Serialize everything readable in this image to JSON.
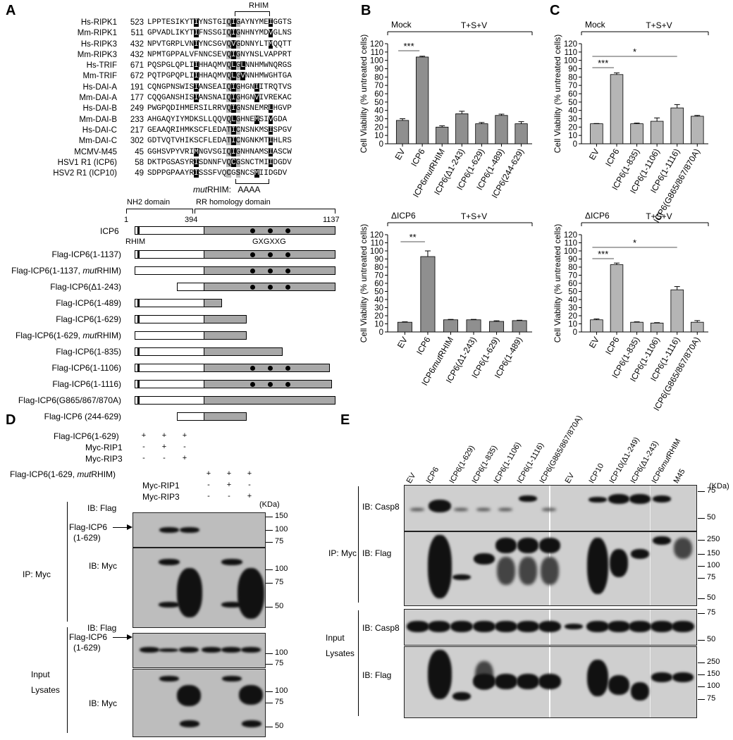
{
  "panels": {
    "A": "A",
    "B": "B",
    "C": "C",
    "D": "D",
    "E": "E"
  },
  "panelA": {
    "rhim_label": "RHIM",
    "mutrhim_label_italic": "mut",
    "mutrhim_label_rest": "RHIM:",
    "mutrhim_seq": "AAAA",
    "alignment": [
      {
        "name": "Hs-RIPK1",
        "start": "523",
        "seq": "LPPTESIKYTIYNSTGIQIGAYNYMEIGGTS"
      },
      {
        "name": "Mm-RIPK1",
        "start": "511",
        "seq": "GPVADLIKYTIFNSSGIQIGNHNYMDVGLNS"
      },
      {
        "name": "Hs-RIPK3",
        "start": "432",
        "seq": "NPVTGRPLVNIYNCSGVQVGDNNYLTMQQTT"
      },
      {
        "name": "Mm-RIPK3",
        "start": "432",
        "seq": "NPMTGPPALVFNNCSEVQIGNYNSLVAPPRT"
      },
      {
        "name": "Hs-TRIF",
        "start": "671",
        "seq": "PQSPGLQPLIIHHAQMVQLGLNNHMWNQRGS"
      },
      {
        "name": "Mm-TRIF",
        "start": "672",
        "seq": "PQTPGPQPLIIHHAQMVQLGVNNHMWGHTGA"
      },
      {
        "name": "Hs-DAI-A",
        "start": "191",
        "seq": "CQNGPNSWISIANSEAIQIGHGNIITRQTVS"
      },
      {
        "name": "Mm-DAI-A",
        "start": "177",
        "seq": "CQQGANSHISIANSNAIQIGHGNVIVREKAC"
      },
      {
        "name": "Hs-DAI-B",
        "start": "249",
        "seq": "PWGPQDIHMERSILRRVQIGNSNEMRLHGVP"
      },
      {
        "name": "Mm-DAI-B",
        "start": "233",
        "seq": "AHGAQYIYMDKSLLQQVQLGHNEMSIVGDA"
      },
      {
        "name": "Hs-DAI-C",
        "start": "217",
        "seq": "GEAAQRIHMKSCFLEDATICNSNKMSISPGV"
      },
      {
        "name": "Mm-DAI-C",
        "start": "302",
        "seq": "GDTVQTVHIKSCFLEDATICNGNKMTIHLRS"
      },
      {
        "name": "MCMV-M45",
        "start": "45",
        "seq": "GGHSVPYVRIMNGVSGIQIGNHNAMSIASCW"
      },
      {
        "name": "HSV1 R1 (ICP6)",
        "start": "58",
        "seq": "DKTPGSASYRISDNNFVQCGSNCTMIIDGDV"
      },
      {
        "name": "HSV2 R1 (ICP10)",
        "start": "49",
        "seq": "SDPPGPAAYRISSSFVQCGSNCSMIIDGDV"
      }
    ],
    "domains": {
      "nh2": "NH2 domain",
      "rr": "RR homology domain"
    },
    "scale": {
      "start": "1",
      "mid": "394",
      "end": "1137"
    },
    "icp6_label": "ICP6",
    "rhim_tag": "RHIM",
    "motif": "GXGXXG",
    "constructs": [
      {
        "label": "Flag-ICP6(1-1137)"
      },
      {
        "label_pre": "Flag-ICP6(1-1137, ",
        "label_it": "mut",
        "label_post": "RHIM)"
      },
      {
        "label": "Flag-ICP6(Δ1-243)"
      },
      {
        "label": "Flag-ICP6(1-489)"
      },
      {
        "label": "Flag-ICP6(1-629)"
      },
      {
        "label_pre": "Flag-ICP6(1-629, ",
        "label_it": "mut",
        "label_post": "RHIM)"
      },
      {
        "label": "Flag-ICP6(1-835)"
      },
      {
        "label": "Flag-ICP6(1-1106)"
      },
      {
        "label": "Flag-ICP6(1-1116)"
      },
      {
        "label": "Flag-ICP6(G865/867/870A)"
      },
      {
        "label": "Flag-ICP6 (244-629)"
      }
    ]
  },
  "chart_data": [
    {
      "type": "bar",
      "panel": "B",
      "condition": "Mock",
      "treatment": "T+S+V",
      "ylabel": "Cell Viability (% untreated cells)",
      "ylim": [
        0,
        120
      ],
      "yticks": [
        0,
        10,
        20,
        30,
        40,
        50,
        60,
        70,
        80,
        90,
        100,
        110,
        120
      ],
      "categories": [
        "EV",
        "ICP6",
        "ICP6mutRHIM",
        "ICP6(Δ1-243)",
        "ICP6(1-629)",
        "ICP6(1-489)",
        "ICP6(244-629)"
      ],
      "values": [
        28,
        104,
        20,
        36,
        24,
        34,
        24
      ],
      "errors": [
        2,
        1,
        1.5,
        3,
        1.5,
        1.5,
        2.5
      ],
      "sig": [
        {
          "from": 0,
          "to": 1,
          "label": "***"
        }
      ]
    },
    {
      "type": "bar",
      "panel": "B",
      "condition": "ΔICP6",
      "treatment": "T+S+V",
      "ylabel": "Cell Viability (% untreated cells)",
      "ylim": [
        0,
        120
      ],
      "yticks": [
        0,
        10,
        20,
        30,
        40,
        50,
        60,
        70,
        80,
        90,
        100,
        110,
        120
      ],
      "categories": [
        "EV",
        "ICP6",
        "ICP6mutRHIM",
        "ICP6(Δ1-243)",
        "ICP6(1-629)",
        "ICP6(1-489)"
      ],
      "values": [
        12,
        93,
        15,
        15,
        13,
        14
      ],
      "errors": [
        0.5,
        7,
        0.5,
        0.5,
        0.8,
        0.5
      ],
      "sig": [
        {
          "from": 0,
          "to": 1,
          "label": "**"
        }
      ]
    },
    {
      "type": "bar",
      "panel": "C",
      "condition": "Mock",
      "treatment": "T+S+V",
      "ylabel": "Cell Viability (% untreated cells)",
      "ylim": [
        0,
        120
      ],
      "yticks": [
        0,
        10,
        20,
        30,
        40,
        50,
        60,
        70,
        80,
        90,
        100,
        110,
        120
      ],
      "categories": [
        "EV",
        "ICP6",
        "ICP6(1-835)",
        "ICP6(1-1106)",
        "ICP6(1-1116)",
        "ICP6(G865/867/870A)"
      ],
      "values": [
        24,
        83,
        24,
        27,
        43,
        33
      ],
      "errors": [
        0.3,
        2,
        0.8,
        4,
        4,
        1
      ],
      "sig": [
        {
          "from": 0,
          "to": 1,
          "label": "***"
        },
        {
          "from": 0,
          "to": 4,
          "label": "*"
        }
      ]
    },
    {
      "type": "bar",
      "panel": "C",
      "condition": "ΔICP6",
      "treatment": "T+S+V",
      "ylabel": "Cell Viability (% untreated cells)",
      "ylim": [
        0,
        120
      ],
      "yticks": [
        0,
        10,
        20,
        30,
        40,
        50,
        60,
        70,
        80,
        90,
        100,
        110,
        120
      ],
      "categories": [
        "EV",
        "ICP6",
        "ICP6(1-835)",
        "ICP6(1-1106)",
        "ICP6(1-1116)",
        "ICP6(G865/867/870A)"
      ],
      "values": [
        15,
        83,
        12,
        11,
        52,
        12
      ],
      "errors": [
        1,
        2,
        0.5,
        0.5,
        4,
        2
      ],
      "sig": [
        {
          "from": 0,
          "to": 1,
          "label": "***"
        },
        {
          "from": 0,
          "to": 4,
          "label": "*"
        }
      ]
    }
  ],
  "panelD": {
    "row1": "Flag-ICP6(1-629)",
    "row2": "Myc-RIP1",
    "row3": "Myc-RIP3",
    "row4_pre": "Flag-ICP6(1-629, ",
    "row4_it": "mut",
    "row4_post": "RHIM)",
    "row5": "Myc-RIP1",
    "row6": "Myc-RIP3",
    "signs1": [
      "+",
      "+",
      "+",
      "",
      "",
      ""
    ],
    "signs2": [
      "-",
      "+",
      "-",
      "",
      "",
      ""
    ],
    "signs3": [
      "-",
      "-",
      "+",
      "",
      "",
      ""
    ],
    "signs4": [
      "",
      "",
      "",
      "+",
      "+",
      "+"
    ],
    "signs5": [
      "",
      "",
      "",
      "-",
      "+",
      "-"
    ],
    "signs6": [
      "",
      "",
      "",
      "-",
      "-",
      "+"
    ],
    "kda": "(KDa)",
    "ib_flag": "IB: Flag",
    "ib_myc": "IB: Myc",
    "ip_myc": "IP: Myc",
    "input": "Input",
    "lysates": "Lysates",
    "arrow_label1": "Flag-ICP6",
    "arrow_label2": "(1-629)",
    "mw_top": [
      "150",
      "100",
      "75"
    ],
    "mw_myc": [
      "100",
      "75",
      "50"
    ],
    "mw_in_flag": [
      "100",
      "75"
    ],
    "mw_in_myc": [
      "100",
      "75",
      "50"
    ]
  },
  "panelE": {
    "lanes_left": [
      "EV",
      "ICP6",
      "ICP6(1-629)",
      "ICP6(1-835)",
      "ICP6(1-1106)",
      "ICP6(1-1116)",
      "ICP6(G865/867/870A)"
    ],
    "lanes_right": [
      "EV",
      "ICP10",
      "ICP10(Δ1-249)",
      "ICP6(Δ1-243)",
      "ICP6mutRHIM",
      "M45"
    ],
    "kda": "(KDa)",
    "ib_casp8": "IB: Casp8",
    "ib_flag": "IB: Flag",
    "ip_myc": "IP: Myc",
    "input": "Input",
    "lysates": "Lysates",
    "mw_casp8": [
      "75",
      "50"
    ],
    "mw_flag": [
      "250",
      "150",
      "100",
      "75",
      "50"
    ],
    "mw_in_casp8": [
      "75",
      "50"
    ],
    "mw_in_flag": [
      "250",
      "150",
      "100",
      "75"
    ]
  }
}
